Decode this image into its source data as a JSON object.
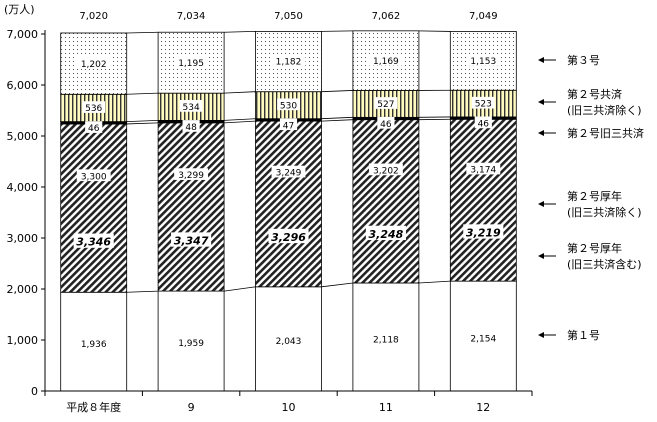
{
  "chart_data": {
    "type": "bar",
    "stacked": true,
    "unit_label": "(万人)",
    "categories": [
      "平成８年度",
      "9",
      "10",
      "11",
      "12"
    ],
    "ylim": [
      0,
      7000
    ],
    "yticks": [
      0,
      1000,
      2000,
      3000,
      4000,
      5000,
      6000,
      7000
    ],
    "ytick_labels": [
      "0",
      "1,000",
      "2,000",
      "3,000",
      "4,000",
      "5,000",
      "6,000",
      "7,000"
    ],
    "totals": [
      "7,020",
      "7,034",
      "7,050",
      "7,062",
      "7,049"
    ],
    "series": [
      {
        "key": "s1",
        "name": "第１号",
        "values": [
          1936,
          1959,
          2043,
          2118,
          2154
        ],
        "labels": [
          "1,936",
          "1,959",
          "2,043",
          "2,118",
          "2,154"
        ],
        "pattern": "white"
      },
      {
        "key": "s2a",
        "name": "第２号厚年\n(旧三共済除く)",
        "values": [
          3300,
          3299,
          3249,
          3202,
          3174
        ],
        "labels": [
          "3,300",
          "3,299",
          "3,249",
          "3,202",
          "3,174"
        ],
        "pattern": "diag"
      },
      {
        "key": "s2b",
        "name": "第２号旧三共済",
        "values": [
          46,
          48,
          47,
          46,
          46
        ],
        "labels": [
          "46",
          "48",
          "47",
          "46",
          "46"
        ],
        "pattern": "black"
      },
      {
        "key": "s2c",
        "name": "第２号共済\n(旧三共済除く)",
        "values": [
          536,
          534,
          530,
          527,
          523
        ],
        "labels": [
          "536",
          "534",
          "530",
          "527",
          "523"
        ],
        "pattern": "vstripe"
      },
      {
        "key": "s3",
        "name": "第３号",
        "values": [
          1202,
          1195,
          1182,
          1169,
          1153
        ],
        "labels": [
          "1,202",
          "1,195",
          "1,182",
          "1,169",
          "1,153"
        ],
        "pattern": "dots"
      }
    ],
    "combined": {
      "name": "第２号厚年\n(旧三共済含む)",
      "labels": [
        "3,346",
        "3,347",
        "3,296",
        "3,248",
        "3,219"
      ]
    },
    "legend_order": [
      "s3",
      "s2c",
      "s2b",
      "s2a",
      "combined",
      "s1"
    ],
    "legend_placement": "right",
    "grid": false
  }
}
